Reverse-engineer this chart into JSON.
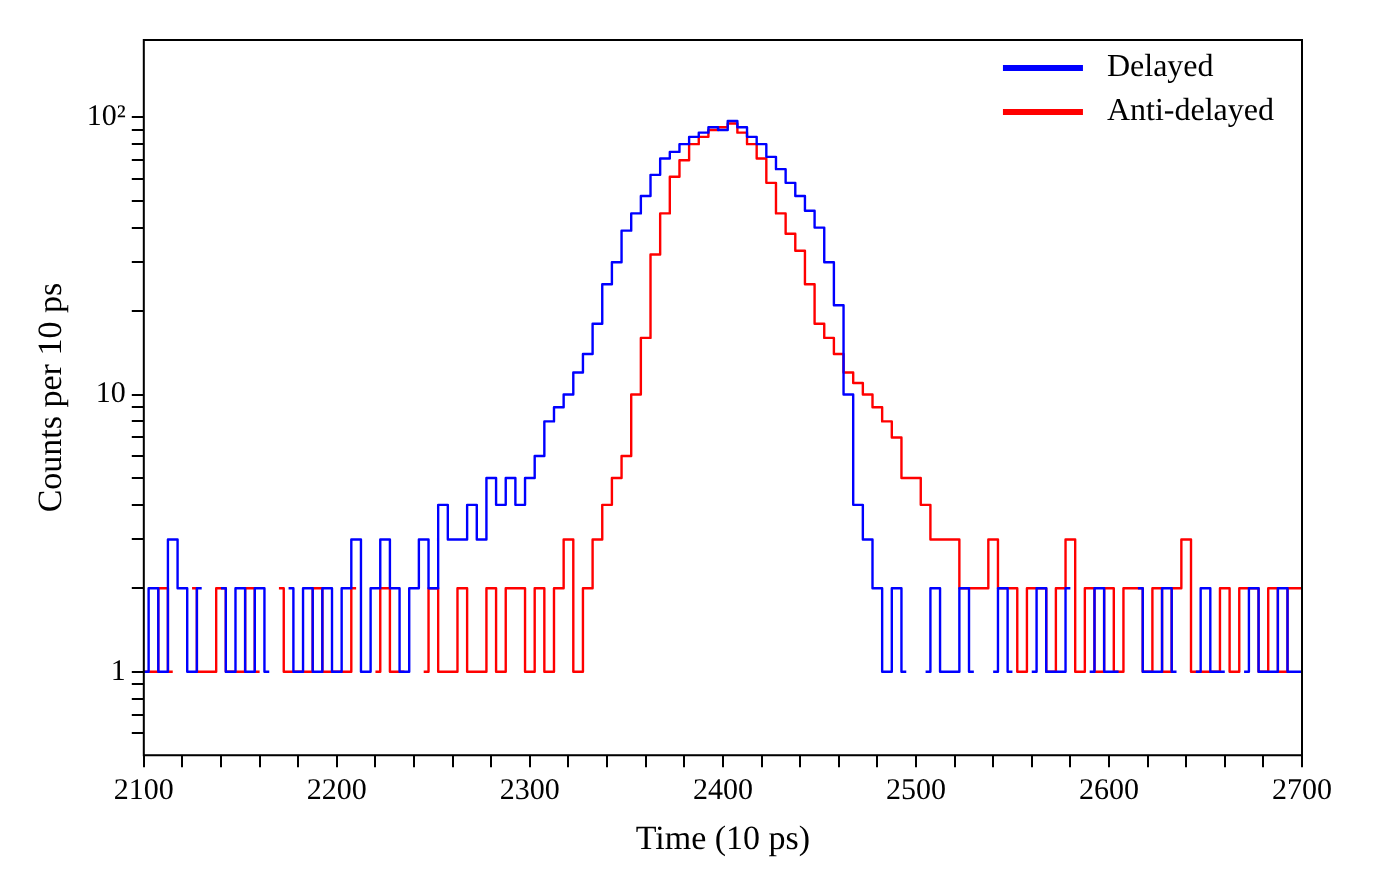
{
  "chart_data": {
    "type": "step",
    "xlabel": "Time (10 ps)",
    "ylabel": "Counts per 10 ps",
    "log": "y",
    "grid": false,
    "legend": "top right",
    "marker": "none",
    "xlim": [
      2100,
      2700
    ],
    "ylim": [
      0.5,
      190
    ],
    "xticks": [
      2100,
      {
        "value": 2120,
        "label": null
      },
      {
        "value": 2140,
        "label": null
      },
      {
        "value": 2160,
        "label": null
      },
      {
        "value": 2180,
        "label": null
      },
      2200,
      {
        "value": 2220,
        "label": null
      },
      {
        "value": 2240,
        "label": null
      },
      {
        "value": 2260,
        "label": null
      },
      {
        "value": 2280,
        "label": null
      },
      2300,
      {
        "value": 2320,
        "label": null
      },
      {
        "value": 2340,
        "label": null
      },
      {
        "value": 2360,
        "label": null
      },
      {
        "value": 2380,
        "label": null
      },
      2400,
      {
        "value": 2420,
        "label": null
      },
      {
        "value": 2440,
        "label": null
      },
      {
        "value": 2460,
        "label": null
      },
      {
        "value": 2480,
        "label": null
      },
      2500,
      {
        "value": 2520,
        "label": null
      },
      {
        "value": 2540,
        "label": null
      },
      {
        "value": 2560,
        "label": null
      },
      {
        "value": 2580,
        "label": null
      },
      2600,
      {
        "value": 2620,
        "label": null
      },
      {
        "value": 2640,
        "label": null
      },
      {
        "value": 2660,
        "label": null
      },
      {
        "value": 2680,
        "label": null
      },
      2700
    ],
    "yticks": [
      {
        "value": 0.6,
        "label": null
      },
      {
        "value": 0.7,
        "label": null
      },
      {
        "value": 0.8,
        "label": null
      },
      {
        "value": 0.9,
        "label": null
      },
      1,
      {
        "value": 2,
        "label": null
      },
      {
        "value": 3,
        "label": null
      },
      {
        "value": 4,
        "label": null
      },
      {
        "value": 5,
        "label": null
      },
      {
        "value": 6,
        "label": null
      },
      {
        "value": 7,
        "label": null
      },
      {
        "value": 8,
        "label": null
      },
      {
        "value": 9,
        "label": null
      },
      10,
      {
        "value": 20,
        "label": null
      },
      {
        "value": 30,
        "label": null
      },
      {
        "value": 40,
        "label": null
      },
      {
        "value": 50,
        "label": null
      },
      {
        "value": 60,
        "label": null
      },
      {
        "value": 70,
        "label": null
      },
      {
        "value": 80,
        "label": null
      },
      {
        "value": 90,
        "label": null
      },
      {
        "value": 100,
        "label": "10²"
      }
    ],
    "x": [
      2100,
      2105,
      2110,
      2115,
      2120,
      2125,
      2130,
      2135,
      2140,
      2145,
      2150,
      2155,
      2160,
      2165,
      2170,
      2175,
      2180,
      2185,
      2190,
      2195,
      2200,
      2205,
      2210,
      2215,
      2220,
      2225,
      2230,
      2235,
      2240,
      2245,
      2250,
      2255,
      2260,
      2265,
      2270,
      2275,
      2280,
      2285,
      2290,
      2295,
      2300,
      2305,
      2310,
      2315,
      2320,
      2325,
      2330,
      2335,
      2340,
      2345,
      2350,
      2355,
      2360,
      2365,
      2370,
      2375,
      2380,
      2385,
      2390,
      2395,
      2400,
      2405,
      2410,
      2415,
      2420,
      2425,
      2430,
      2435,
      2440,
      2445,
      2450,
      2455,
      2460,
      2465,
      2470,
      2475,
      2480,
      2485,
      2490,
      2495,
      2500,
      2505,
      2510,
      2515,
      2520,
      2525,
      2530,
      2535,
      2540,
      2545,
      2550,
      2555,
      2560,
      2565,
      2570,
      2575,
      2580,
      2585,
      2590,
      2595,
      2600,
      2605,
      2610,
      2615,
      2620,
      2625,
      2630,
      2635,
      2640,
      2645,
      2650,
      2655,
      2660,
      2665,
      2670,
      2675,
      2680,
      2685,
      2690,
      2695,
      2700
    ],
    "series": [
      {
        "name": "Delayed",
        "color": "#0000ff",
        "values": [
          1,
          2,
          1,
          3,
          2,
          1,
          2,
          null,
          2,
          1,
          2,
          1,
          2,
          1,
          null,
          2,
          1,
          2,
          1,
          2,
          1,
          2,
          3,
          1,
          2,
          3,
          2,
          1,
          2,
          3,
          2,
          4,
          3,
          3,
          4,
          3,
          5,
          4,
          5,
          4,
          5,
          6,
          8,
          9,
          10,
          12,
          14,
          18,
          25,
          30,
          39,
          45,
          52,
          62,
          71,
          75,
          80,
          85,
          88,
          92,
          90,
          97,
          92,
          85,
          80,
          72,
          65,
          58,
          52,
          46,
          40,
          30,
          21,
          10,
          4,
          3,
          2,
          1,
          2,
          1,
          null,
          1,
          2,
          1,
          1,
          2,
          1,
          null,
          1,
          2,
          1,
          null,
          1,
          2,
          1,
          1,
          2,
          null,
          1,
          2,
          1,
          1,
          null,
          2,
          1,
          1,
          2,
          1,
          null,
          1,
          2,
          1,
          1,
          null,
          1,
          2,
          1,
          1,
          2,
          1,
          1
        ]
      },
      {
        "name": "Anti-delayed",
        "color": "#ff0000",
        "values": [
          1,
          1,
          2,
          1,
          null,
          2,
          1,
          1,
          2,
          1,
          1,
          2,
          1,
          null,
          2,
          1,
          1,
          1,
          2,
          1,
          1,
          1,
          2,
          null,
          1,
          2,
          1,
          1,
          null,
          1,
          2,
          1,
          1,
          2,
          1,
          1,
          2,
          1,
          2,
          2,
          1,
          2,
          1,
          2,
          3,
          1,
          2,
          3,
          4,
          5,
          6,
          10,
          16,
          32,
          45,
          61,
          70,
          80,
          85,
          90,
          92,
          95,
          88,
          80,
          71,
          58,
          45,
          38,
          33,
          25,
          18,
          16,
          14,
          12,
          11,
          10,
          9,
          8,
          7,
          5,
          5,
          4,
          3,
          3,
          3,
          2,
          2,
          2,
          3,
          2,
          2,
          1,
          2,
          2,
          1,
          2,
          3,
          1,
          2,
          1,
          2,
          1,
          2,
          2,
          1,
          2,
          1,
          2,
          3,
          1,
          1,
          1,
          2,
          1,
          2,
          2,
          1,
          2,
          1,
          2,
          2
        ]
      }
    ]
  }
}
